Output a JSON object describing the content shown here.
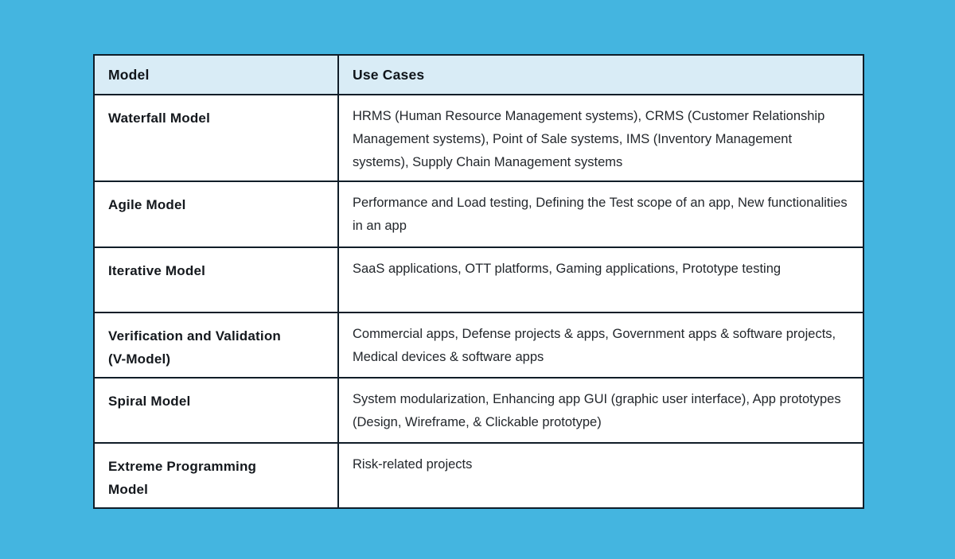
{
  "colors": {
    "page_background": "#44b5e0",
    "header_background": "#d9ecf6",
    "cell_background": "#ffffff",
    "border": "#101d28",
    "model_text": "#14181d",
    "usecase_text": "#23272c"
  },
  "table": {
    "header": {
      "model_label": "Model",
      "use_cases_label": "Use Cases"
    },
    "rows": [
      {
        "model": "Waterfall Model",
        "use_cases": "HRMS (Human Resource Management systems), CRMS (Customer Relationship Management systems), Point of Sale systems, IMS (Inventory Management systems), Supply Chain Management systems"
      },
      {
        "model": "Agile Model",
        "use_cases": "Performance and Load testing, Defining the Test scope of an app, New functionalities in an app"
      },
      {
        "model": "Iterative Model",
        "use_cases": "SaaS applications, OTT platforms, Gaming applications, Prototype testing"
      },
      {
        "model": "Verification and Validation (V-Model)",
        "use_cases": "Commercial apps, Defense projects & apps, Government apps & software projects, Medical devices & software apps"
      },
      {
        "model": "Spiral Model",
        "use_cases": "System modularization, Enhancing app GUI (graphic user interface), App prototypes (Design, Wireframe, & Clickable prototype)"
      },
      {
        "model": "Extreme Programming Model",
        "use_cases": "Risk-related projects"
      }
    ]
  }
}
